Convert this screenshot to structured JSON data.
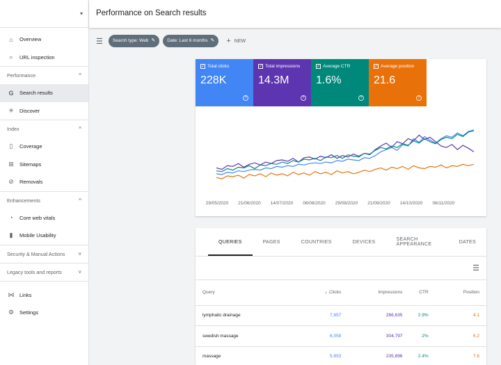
{
  "header": {
    "title": "Performance on Search results"
  },
  "sidebar": {
    "caret": "▾",
    "top_items": [
      {
        "label": "Overview",
        "icon": "home-icon",
        "glyph": "⌂"
      },
      {
        "label": "URL inspection",
        "icon": "search-icon",
        "glyph": "⌕"
      }
    ],
    "sections": [
      {
        "title": "Performance",
        "chev": "^",
        "items": [
          {
            "label": "Search results",
            "icon": "google-g-icon",
            "glyph": "G",
            "active": true
          },
          {
            "label": "Discover",
            "icon": "asterisk-icon",
            "glyph": "✳"
          }
        ]
      },
      {
        "title": "Index",
        "chev": "^",
        "items": [
          {
            "label": "Coverage",
            "icon": "file-icon",
            "glyph": "▯"
          },
          {
            "label": "Sitemaps",
            "icon": "sitemap-icon",
            "glyph": "⊞"
          },
          {
            "label": "Removals",
            "icon": "removal-icon",
            "glyph": "⊘"
          }
        ]
      },
      {
        "title": "Enhancements",
        "chev": "^",
        "items": [
          {
            "label": "Core web vitals",
            "icon": "gauge-icon",
            "glyph": "◔"
          },
          {
            "label": "Mobile Usability",
            "icon": "phone-icon",
            "glyph": "▮"
          }
        ]
      },
      {
        "title": "Security & Manual Actions",
        "chev": "˅",
        "items": []
      },
      {
        "title": "Legacy tools and reports",
        "chev": "˅",
        "items": []
      }
    ],
    "bottom_items": [
      {
        "label": "Links",
        "icon": "links-icon",
        "glyph": "⋈"
      },
      {
        "label": "Settings",
        "icon": "gear-icon",
        "glyph": "⚙"
      }
    ]
  },
  "filters": {
    "filter_icon": "☰",
    "chips": [
      {
        "label": "Search type: Web"
      },
      {
        "label": "Date: Last 6 months"
      }
    ],
    "new_label": "NEW"
  },
  "metrics": [
    {
      "label": "Total clicks",
      "value": "228K",
      "color": "#4285f4"
    },
    {
      "label": "Total impressions",
      "value": "14.3M",
      "color": "#5e35b1"
    },
    {
      "label": "Average CTR",
      "value": "1.6%",
      "color": "#00897b"
    },
    {
      "label": "Average position",
      "value": "21.6",
      "color": "#e8710a"
    }
  ],
  "chart_data": {
    "type": "line",
    "x_tick_labels": [
      "29/05/2020",
      "21/06/2020",
      "14/07/2020",
      "06/08/2020",
      "29/08/2020",
      "21/09/2020",
      "14/10/2020",
      "06/11/2020"
    ],
    "grid": false,
    "series": [
      {
        "color": "#4285f4",
        "values": [
          22,
          21,
          24,
          23,
          26,
          25,
          27,
          28,
          27,
          30,
          29,
          32,
          31,
          33,
          32,
          35,
          34,
          36,
          37,
          36,
          38,
          37,
          40,
          39,
          42,
          41,
          40,
          44,
          43,
          47,
          52,
          55,
          58,
          54,
          62,
          60,
          70,
          65,
          73,
          68,
          64,
          70,
          74,
          72,
          78,
          74,
          80,
          82
        ]
      },
      {
        "color": "#5e35b1",
        "values": [
          30,
          28,
          33,
          32,
          36,
          31,
          35,
          37,
          34,
          38,
          36,
          40,
          41,
          39,
          43,
          38,
          44,
          45,
          42,
          46,
          44,
          48,
          43,
          47,
          45,
          49,
          46,
          50,
          48,
          55,
          60,
          64,
          58,
          66,
          63,
          70,
          67,
          75,
          69,
          72,
          66,
          60,
          58,
          62,
          55,
          61,
          57,
          52
        ]
      },
      {
        "color": "#00897b",
        "values": [
          26,
          25,
          29,
          27,
          31,
          30,
          33,
          29,
          34,
          33,
          36,
          35,
          38,
          36,
          40,
          38,
          42,
          41,
          43,
          40,
          45,
          44,
          47,
          43,
          48,
          46,
          45,
          50,
          49,
          54,
          58,
          56,
          60,
          58,
          63,
          61,
          67,
          64,
          70,
          66,
          63,
          69,
          72,
          70,
          76,
          73,
          79,
          81
        ]
      },
      {
        "color": "#e8710a",
        "values": [
          17,
          15,
          19,
          18,
          20,
          16,
          21,
          19,
          22,
          18,
          23,
          20,
          22,
          19,
          24,
          21,
          23,
          20,
          25,
          22,
          24,
          21,
          26,
          23,
          25,
          22,
          24,
          27,
          25,
          28,
          30,
          27,
          31,
          29,
          32,
          28,
          33,
          30,
          29,
          32,
          31,
          34,
          30,
          33,
          32,
          35,
          33,
          35
        ]
      }
    ]
  },
  "table": {
    "tabs": [
      "QUERIES",
      "PAGES",
      "COUNTRIES",
      "DEVICES",
      "SEARCH APPEARANCE",
      "DATES"
    ],
    "filter_icon": "☰",
    "columns": {
      "query": "Query",
      "sort_arrow": "↓",
      "clicks": "Clicks",
      "impressions": "Impressions",
      "ctr": "CTR",
      "position": "Position"
    },
    "rows": [
      {
        "query": "lymphatic drainage",
        "clicks": "7,657",
        "impressions": "266,635",
        "ctr": "2.9%",
        "position": "4.1"
      },
      {
        "query": "swedish massage",
        "clicks": "6,059",
        "impressions": "304,797",
        "ctr": "2%",
        "position": "6.2"
      },
      {
        "query": "massage",
        "clicks": "5,653",
        "impressions": "235,896",
        "ctr": "2.4%",
        "position": "7.6"
      }
    ]
  }
}
